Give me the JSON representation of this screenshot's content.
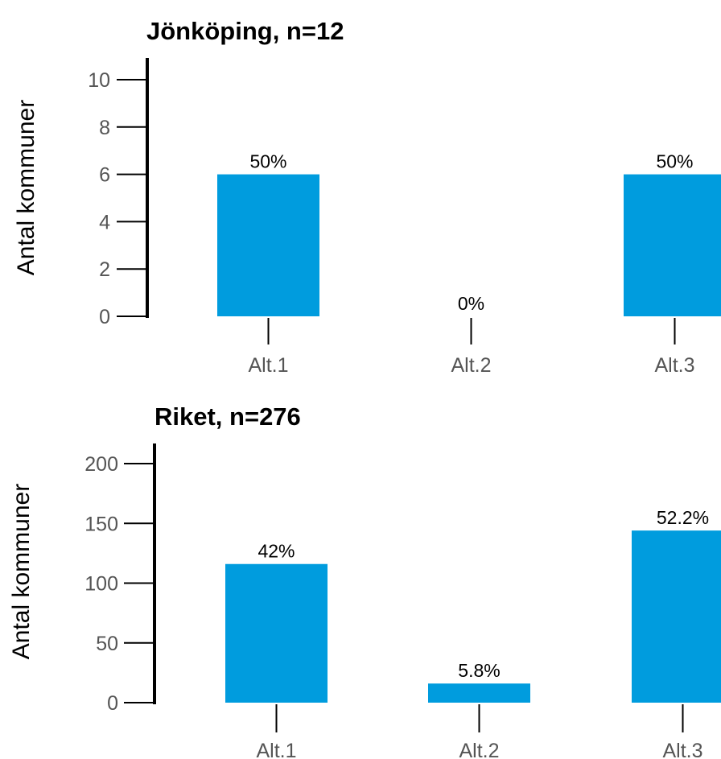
{
  "colors": {
    "bar": "#009CDE"
  },
  "chart_data": [
    {
      "type": "bar",
      "title": "Jönköping, n=12",
      "ylabel": "Antal kommuner",
      "xlabel": "",
      "categories": [
        "Alt.1",
        "Alt.2",
        "Alt.3"
      ],
      "values": [
        6,
        0,
        6
      ],
      "data_labels": [
        "50%",
        "0%",
        "50%"
      ],
      "ylim": [
        0,
        10
      ],
      "yticks": [
        0,
        2,
        4,
        6,
        8,
        10
      ],
      "grid": false,
      "legend": false
    },
    {
      "type": "bar",
      "title": "Riket, n=276",
      "ylabel": "Antal kommuner",
      "xlabel": "",
      "categories": [
        "Alt.1",
        "Alt.2",
        "Alt.3"
      ],
      "values": [
        116,
        16,
        144
      ],
      "data_labels": [
        "42%",
        "5.8%",
        "52.2%"
      ],
      "ylim": [
        0,
        200
      ],
      "yticks": [
        0,
        50,
        100,
        150,
        200
      ],
      "grid": false,
      "legend": false
    }
  ]
}
